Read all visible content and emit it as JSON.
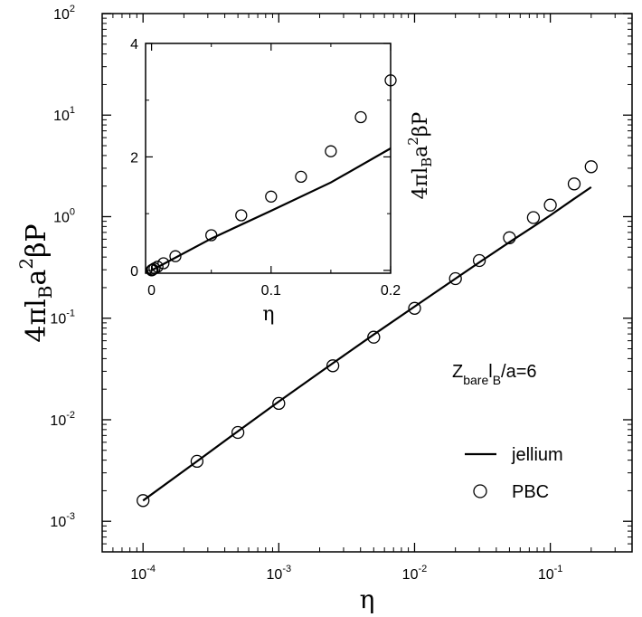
{
  "chart_data": [
    {
      "type": "line+scatter",
      "role": "main",
      "xscale": "log",
      "yscale": "log",
      "xlim": [
        5e-05,
        0.4
      ],
      "ylim": [
        0.0005,
        100
      ],
      "xlabel": "η",
      "ylabel": "4πl_B a^2 βP",
      "ylabel_parts": {
        "a": "4πl",
        "b": "B",
        "c": "a",
        "d": "2",
        "e": "βP"
      },
      "xticks": [
        {
          "base": "10",
          "exp": "-4",
          "value": 0.0001
        },
        {
          "base": "10",
          "exp": "-3",
          "value": 0.001
        },
        {
          "base": "10",
          "exp": "-2",
          "value": 0.01
        },
        {
          "base": "10",
          "exp": "-1",
          "value": 0.1
        }
      ],
      "yticks": [
        {
          "base": "10",
          "exp": "-3",
          "value": 0.001
        },
        {
          "base": "10",
          "exp": "-2",
          "value": 0.01
        },
        {
          "base": "10",
          "exp": "-1",
          "value": 0.1
        },
        {
          "base": "10",
          "exp": "0",
          "value": 1
        },
        {
          "base": "10",
          "exp": "1",
          "value": 10
        },
        {
          "base": "10",
          "exp": "2",
          "value": 100
        }
      ],
      "annotation": {
        "z": "Z",
        "bare": "bare",
        "l": "l",
        "b": "B",
        "rest": "/a=6"
      },
      "legend": {
        "jellium": "jellium",
        "pbc": "PBC"
      },
      "series": [
        {
          "name": "jellium",
          "style": "line",
          "x": [
            0.0001,
            0.00025,
            0.0005,
            0.001,
            0.0025,
            0.005,
            0.01,
            0.02,
            0.03,
            0.05,
            0.075,
            0.1,
            0.15,
            0.2
          ],
          "y": [
            0.0016,
            0.0039,
            0.0077,
            0.0151,
            0.036,
            0.069,
            0.13,
            0.245,
            0.355,
            0.56,
            0.8,
            1.03,
            1.5,
            1.95
          ]
        },
        {
          "name": "PBC",
          "style": "markers",
          "x": [
            0.0001,
            0.00025,
            0.0005,
            0.001,
            0.0025,
            0.005,
            0.01,
            0.02,
            0.03,
            0.05,
            0.075,
            0.1,
            0.15,
            0.2
          ],
          "y": [
            0.0016,
            0.0039,
            0.0075,
            0.0145,
            0.034,
            0.065,
            0.125,
            0.245,
            0.37,
            0.62,
            0.98,
            1.3,
            2.1,
            3.1
          ]
        }
      ]
    },
    {
      "type": "line+scatter",
      "role": "inset",
      "xscale": "linear",
      "yscale": "linear",
      "xlim": [
        -0.005,
        0.2
      ],
      "ylim": [
        -0.05,
        4
      ],
      "xlabel": "η",
      "ylabel_parts": {
        "a": "4πl",
        "b": "B",
        "c": "a",
        "d": "2",
        "e": "βP"
      },
      "xticks": [
        {
          "label": "0",
          "value": 0
        },
        {
          "label": "0.1",
          "value": 0.1
        },
        {
          "label": "0.2",
          "value": 0.2
        }
      ],
      "yticks": [
        {
          "label": "0",
          "value": 0
        },
        {
          "label": "2",
          "value": 2
        },
        {
          "label": "4",
          "value": 4
        }
      ],
      "series": [
        {
          "name": "jellium",
          "style": "line",
          "x": [
            0,
            0.05,
            0.1,
            0.15,
            0.2
          ],
          "y": [
            0,
            0.56,
            1.05,
            1.55,
            2.15
          ]
        },
        {
          "name": "PBC",
          "style": "markers",
          "x": [
            0.0001,
            0.00025,
            0.0005,
            0.001,
            0.0025,
            0.005,
            0.01,
            0.02,
            0.05,
            0.075,
            0.1,
            0.125,
            0.15,
            0.175,
            0.2
          ],
          "y": [
            0.0016,
            0.004,
            0.008,
            0.015,
            0.034,
            0.065,
            0.125,
            0.25,
            0.62,
            0.97,
            1.3,
            1.65,
            2.1,
            2.7,
            3.35
          ]
        }
      ]
    }
  ]
}
